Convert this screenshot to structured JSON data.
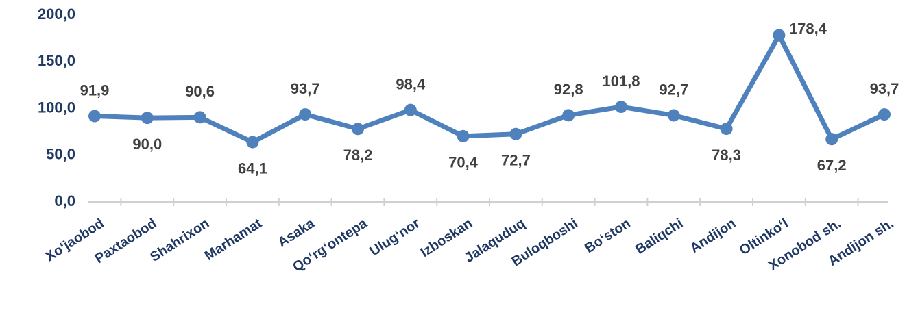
{
  "chart_data": {
    "type": "line",
    "categories": [
      "Xo‘jaobod",
      "Paxtaobod",
      "Shahrixon",
      "Marhamat",
      "Asaka",
      "Qo‘rg‘ontepa",
      "Ulug‘nor",
      "Izboskan",
      "Jalaquduq",
      "Buloqboshi",
      "Bo‘ston",
      "Baliqchi",
      "Andijon",
      "Oltinko‘l",
      "Xonobod sh.",
      "Andijon sh."
    ],
    "series": [
      {
        "name": null,
        "color": "#4f81bd",
        "values": [
          91.9,
          90.0,
          90.6,
          64.1,
          93.7,
          78.2,
          98.4,
          70.4,
          72.7,
          92.8,
          101.8,
          92.7,
          78.3,
          178.4,
          67.2,
          93.7
        ],
        "value_labels": [
          "91,9",
          "90,0",
          "90,6",
          "64,1",
          "93,7",
          "78,2",
          "98,4",
          "70,4",
          "72,7",
          "92,8",
          "101,8",
          "92,7",
          "78,3",
          "178,4",
          "67,2",
          "93,7"
        ]
      }
    ],
    "ylim": [
      0,
      200
    ],
    "yticks": [
      {
        "value": 0,
        "label": "0,0"
      },
      {
        "value": 50,
        "label": "50,0"
      },
      {
        "value": 100,
        "label": "100,0"
      },
      {
        "value": 150,
        "label": "150,0"
      },
      {
        "value": 200,
        "label": "200,0"
      }
    ]
  }
}
